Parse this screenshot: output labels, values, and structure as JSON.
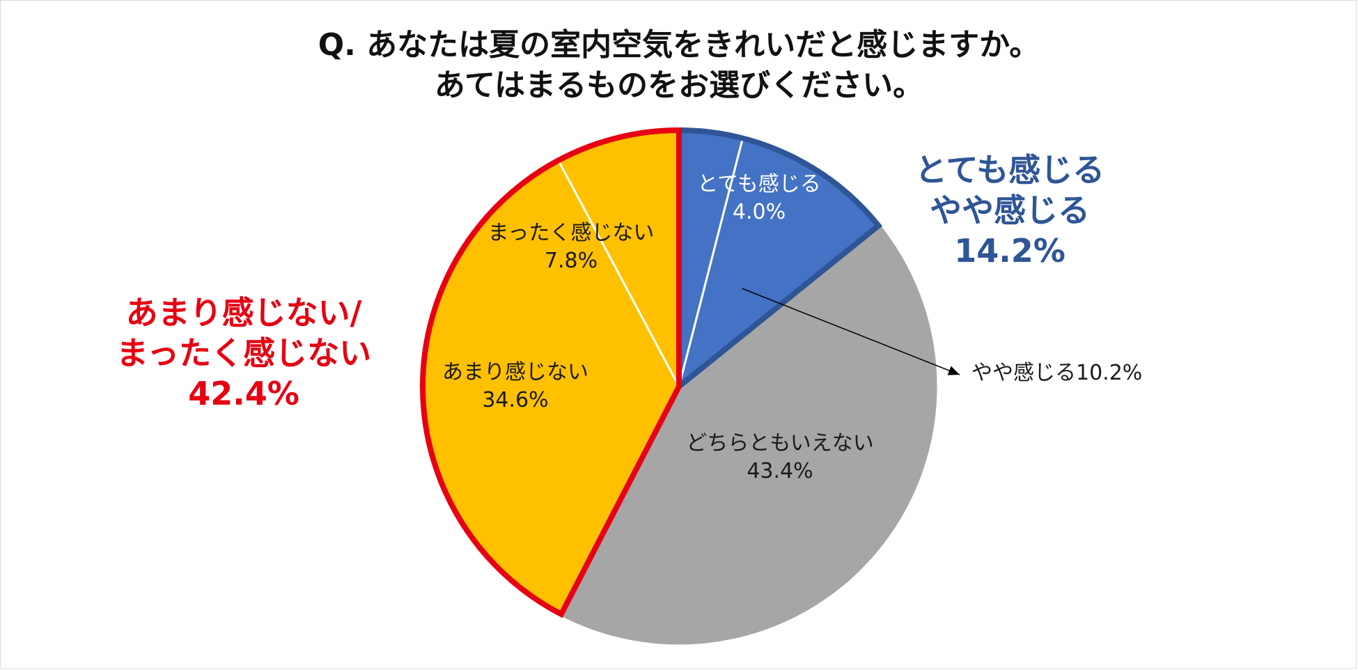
{
  "title": {
    "line1": "Q.  あなたは夏の室内空気をきれいだと感じますか。",
    "line2": "あてはまるものをお選びください。"
  },
  "chart_data": {
    "type": "pie",
    "start": "12 o'clock",
    "direction": "clockwise",
    "slices": [
      {
        "label": "とても感じる",
        "value": 4.0,
        "value_text": "4.0%",
        "color": "#4472c4"
      },
      {
        "label": "やや感じる",
        "value": 10.2,
        "value_text": "10.2%",
        "color": "#4472c4"
      },
      {
        "label": "どちらともいえない",
        "value": 43.4,
        "value_text": "43.4%",
        "color": "#a6a6a6"
      },
      {
        "label": "あまり感じない",
        "value": 34.6,
        "value_text": "34.6%",
        "color": "#ffc000"
      },
      {
        "label": "まったく感じない",
        "value": 7.8,
        "value_text": "7.8%",
        "color": "#ffc000"
      }
    ],
    "groups": [
      {
        "line1": "とても感じる",
        "line2": "やや感じる",
        "total": "14.2%",
        "color": "#2f5597",
        "outline": "#2f5597"
      },
      {
        "line1": "あまり感じない/",
        "line2": "まったく感じない",
        "total": "42.4%",
        "color": "#e60012",
        "outline": "#e60012"
      }
    ],
    "callout": {
      "label": "やや感じる10.2%"
    }
  }
}
